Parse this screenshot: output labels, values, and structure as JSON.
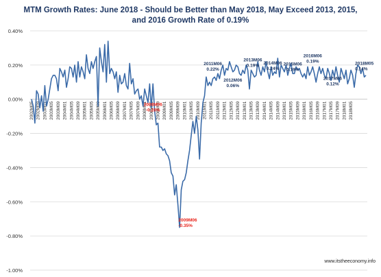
{
  "chart_data": {
    "type": "line",
    "title_line1": "MTM Growth Rates: June 2018 - Should be Better than May 2018, May Exceed 2013, 2015,",
    "title_line2": "and 2016 Growth Rate of 0.19%",
    "ylim": [
      -1.0,
      0.4
    ],
    "y_ticks": [
      0.4,
      0.2,
      0.0,
      -0.2,
      -0.4,
      -0.6,
      -0.8,
      -1.0
    ],
    "y_tick_labels": [
      "0.40%",
      "0.20%",
      "0.00%",
      "-0.20%",
      "-0.40%",
      "-0.60%",
      "-0.80%",
      "-1.00%"
    ],
    "x_tick_labels": [
      "2002M05",
      "2002M09",
      "2003M01",
      "2003M05",
      "2003M09",
      "2004M01",
      "2004M05",
      "2004M09",
      "2005M01",
      "2005M05",
      "2005M09",
      "2006M01",
      "2006M05",
      "2006M09",
      "2007M01",
      "2007M05",
      "2007M09",
      "2008M01",
      "2008M05",
      "2008M09",
      "2009M01",
      "2009M05",
      "2009M09",
      "2010M01",
      "2010M05",
      "2010M09",
      "2011M01",
      "2011M05",
      "2011M09",
      "2012M01",
      "2012M05",
      "2012M09",
      "2013M01",
      "2013M05",
      "2013M09",
      "2014M01",
      "2014M05",
      "2014M09",
      "2015M01",
      "2015M05",
      "2015M09",
      "2016M01",
      "2016M05",
      "2016M09",
      "2017M01",
      "2017M05",
      "2017M09",
      "2018M01",
      "2018M05"
    ],
    "grid": "horizontal",
    "series": [
      {
        "color": "#3a6aa8",
        "values": [
          0.0,
          -0.04,
          -0.14,
          0.05,
          0.03,
          -0.05,
          0.02,
          -0.07,
          0.08,
          -0.04,
          0.0,
          0.06,
          0.12,
          0.14,
          0.14,
          0.12,
          0.05,
          0.18,
          0.16,
          0.13,
          0.17,
          0.07,
          0.12,
          0.19,
          0.18,
          0.13,
          0.2,
          0.1,
          0.22,
          0.13,
          0.19,
          0.16,
          0.12,
          0.26,
          0.18,
          0.15,
          0.22,
          0.18,
          0.22,
          0.25,
          -0.04,
          0.3,
          0.22,
          0.16,
          0.32,
          0.1,
          0.34,
          0.15,
          0.18,
          0.16,
          0.12,
          0.16,
          0.04,
          0.14,
          0.09,
          0.1,
          0.15,
          0.08,
          0.06,
          0.21,
          0.09,
          0.12,
          0.03,
          0.05,
          0.06,
          0.0,
          0.02,
          -0.04,
          0.06,
          0.02,
          -0.02,
          0.09,
          -0.05,
          0.09,
          -0.07,
          -0.15,
          -0.14,
          -0.28,
          -0.28,
          -0.3,
          -0.29,
          -0.32,
          -0.33,
          -0.36,
          -0.43,
          -0.45,
          -0.56,
          -0.5,
          -0.62,
          -0.75,
          -0.53,
          -0.48,
          -0.47,
          -0.43,
          -0.36,
          -0.3,
          -0.21,
          -0.13,
          -0.2,
          -0.1,
          -0.18,
          -0.35,
          -0.14,
          -0.02,
          0.02,
          0.13,
          0.08,
          0.1,
          0.08,
          0.12,
          0.13,
          0.11,
          0.15,
          0.12,
          0.17,
          0.2,
          0.14,
          0.18,
          0.17,
          0.22,
          0.19,
          0.16,
          0.17,
          0.2,
          0.19,
          0.15,
          0.14,
          0.17,
          0.15,
          0.2,
          0.17,
          0.06,
          0.17,
          0.15,
          0.13,
          0.14,
          0.22,
          0.17,
          0.14,
          0.19,
          0.16,
          0.22,
          0.16,
          0.12,
          0.19,
          0.14,
          0.16,
          0.15,
          0.24,
          0.13,
          0.2,
          0.18,
          0.16,
          0.2,
          0.14,
          0.18,
          0.21,
          0.15,
          0.15,
          0.19,
          0.17,
          0.18,
          0.15,
          0.13,
          0.15,
          0.12,
          0.19,
          0.14,
          0.16,
          0.19,
          0.15,
          0.1,
          0.15,
          0.19,
          0.15,
          0.18,
          0.14,
          0.12,
          0.18,
          0.15,
          0.11,
          0.17,
          0.13,
          0.19,
          0.14,
          0.1,
          0.18,
          0.15,
          0.12,
          0.17,
          0.09,
          0.12,
          0.17,
          0.14,
          0.07,
          0.15,
          0.2,
          0.19,
          0.15,
          0.18,
          0.13,
          0.14
        ]
      }
    ],
    "annotations": [
      {
        "label": "2008M06",
        "value": "-0.28%",
        "color": "#e8231a"
      },
      {
        "label": "2009M06",
        "value": "-0.35%",
        "color": "#e8231a"
      },
      {
        "label": "2011M06",
        "value": "0.22%",
        "color": "#1f3864"
      },
      {
        "label": "2012M06",
        "value": "0.06%",
        "color": "#1f3864"
      },
      {
        "label": "2013M06",
        "value": "0.19%",
        "color": "#1f3864"
      },
      {
        "label": "2014M06",
        "value": "0.24%",
        "color": "#1f3864"
      },
      {
        "label": "2015M06",
        "value": "0.19%",
        "color": "#1f3864"
      },
      {
        "label": "2016M06",
        "value": "0.19%",
        "color": "#1f3864"
      },
      {
        "label": "2017M06",
        "value": "0.12%",
        "color": "#1f3864"
      },
      {
        "label": "2018M05",
        "value": "0.14%",
        "color": "#1f3864"
      }
    ],
    "source": "www.itstheeconomy.info"
  }
}
